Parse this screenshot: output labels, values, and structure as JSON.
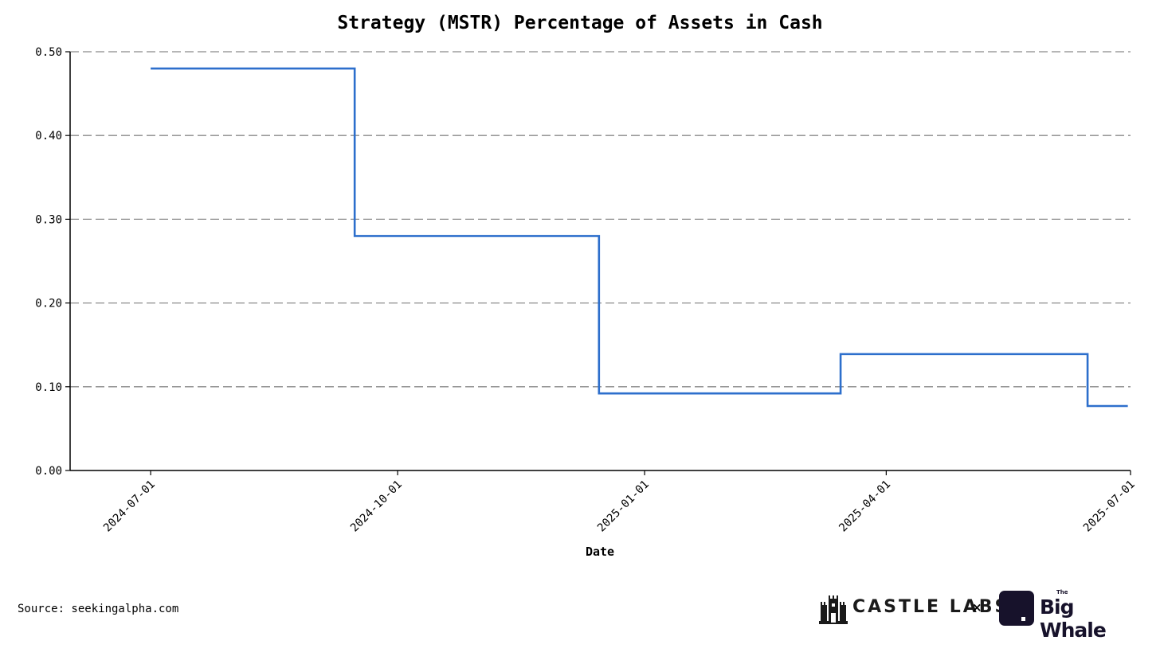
{
  "chart_data": {
    "type": "line",
    "step": "post",
    "title": "Strategy (MSTR) Percentage of Assets in Cash",
    "xlabel": "Date",
    "ylabel": "",
    "x_ticks": [
      "2024-07-01",
      "2024-10-01",
      "2025-01-01",
      "2025-04-01",
      "2025-07-01"
    ],
    "y_ticks": [
      "0.00",
      "0.10",
      "0.20",
      "0.30",
      "0.40",
      "0.50"
    ],
    "xlim": [
      "2024-06-01",
      "2025-07-01"
    ],
    "ylim": [
      0,
      0.5
    ],
    "grid": "horizontal-dashed",
    "series": [
      {
        "color": "#2d6fcc",
        "x": [
          "2024-07-01",
          "2024-09-15",
          "2024-12-15",
          "2025-03-15",
          "2025-06-15",
          "2025-06-30"
        ],
        "y": [
          0.48,
          0.28,
          0.092,
          0.139,
          0.077,
          0.077
        ]
      }
    ]
  },
  "footer": {
    "source": "Source: seekingalpha.com",
    "castle_labs": "CASTLE LABS",
    "times": "×",
    "big_whale_the": "The",
    "big_whale": "Big Whale"
  }
}
